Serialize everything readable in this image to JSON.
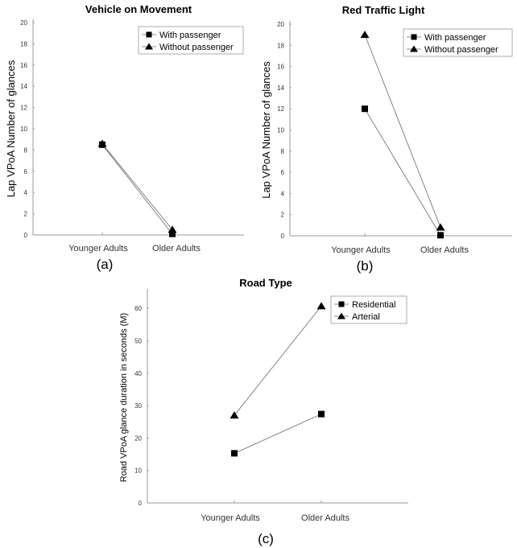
{
  "chart_data": [
    {
      "type": "line",
      "panel_label": "(a)",
      "title": "Vehicle on Movement",
      "xlabel": "",
      "ylabel": "Lap VPoA Number of glances",
      "categories": [
        "Younger Adults",
        "Older Adults"
      ],
      "ylim": [
        0,
        20
      ],
      "yticks": [
        0,
        2,
        4,
        6,
        8,
        10,
        12,
        14,
        16,
        18,
        20
      ],
      "legend_position": "top-right",
      "series": [
        {
          "name": "With passenger",
          "marker": "square",
          "values": [
            8.5,
            0.1
          ]
        },
        {
          "name": "Without passenger",
          "marker": "triangle",
          "values": [
            8.6,
            0.5
          ]
        }
      ]
    },
    {
      "type": "line",
      "panel_label": "(b)",
      "title": "Red Traffic Light",
      "xlabel": "",
      "ylabel": "Lap VPoA Number of glances",
      "categories": [
        "Younger Adults",
        "Older Adults"
      ],
      "ylim": [
        0,
        20
      ],
      "yticks": [
        0,
        2,
        4,
        6,
        8,
        10,
        12,
        14,
        16,
        18,
        20
      ],
      "legend_position": "top-right",
      "series": [
        {
          "name": "With passenger",
          "marker": "square",
          "values": [
            12,
            0.05
          ]
        },
        {
          "name": "Without passenger",
          "marker": "triangle",
          "values": [
            19,
            0.8
          ]
        }
      ]
    },
    {
      "type": "line",
      "panel_label": "(c)",
      "title": "Road Type",
      "xlabel": "",
      "ylabel": "Road VPoA glance duration in seconds (M)",
      "categories": [
        "Younger Adults",
        "Older Adults"
      ],
      "ylim": [
        0,
        65
      ],
      "yticks": [
        0,
        10,
        20,
        30,
        40,
        50,
        60
      ],
      "legend_position": "top-right",
      "series": [
        {
          "name": "Residential",
          "marker": "square",
          "values": [
            15.3,
            27.4
          ]
        },
        {
          "name": "Arterial",
          "marker": "triangle",
          "values": [
            27,
            60.7
          ]
        }
      ]
    }
  ]
}
